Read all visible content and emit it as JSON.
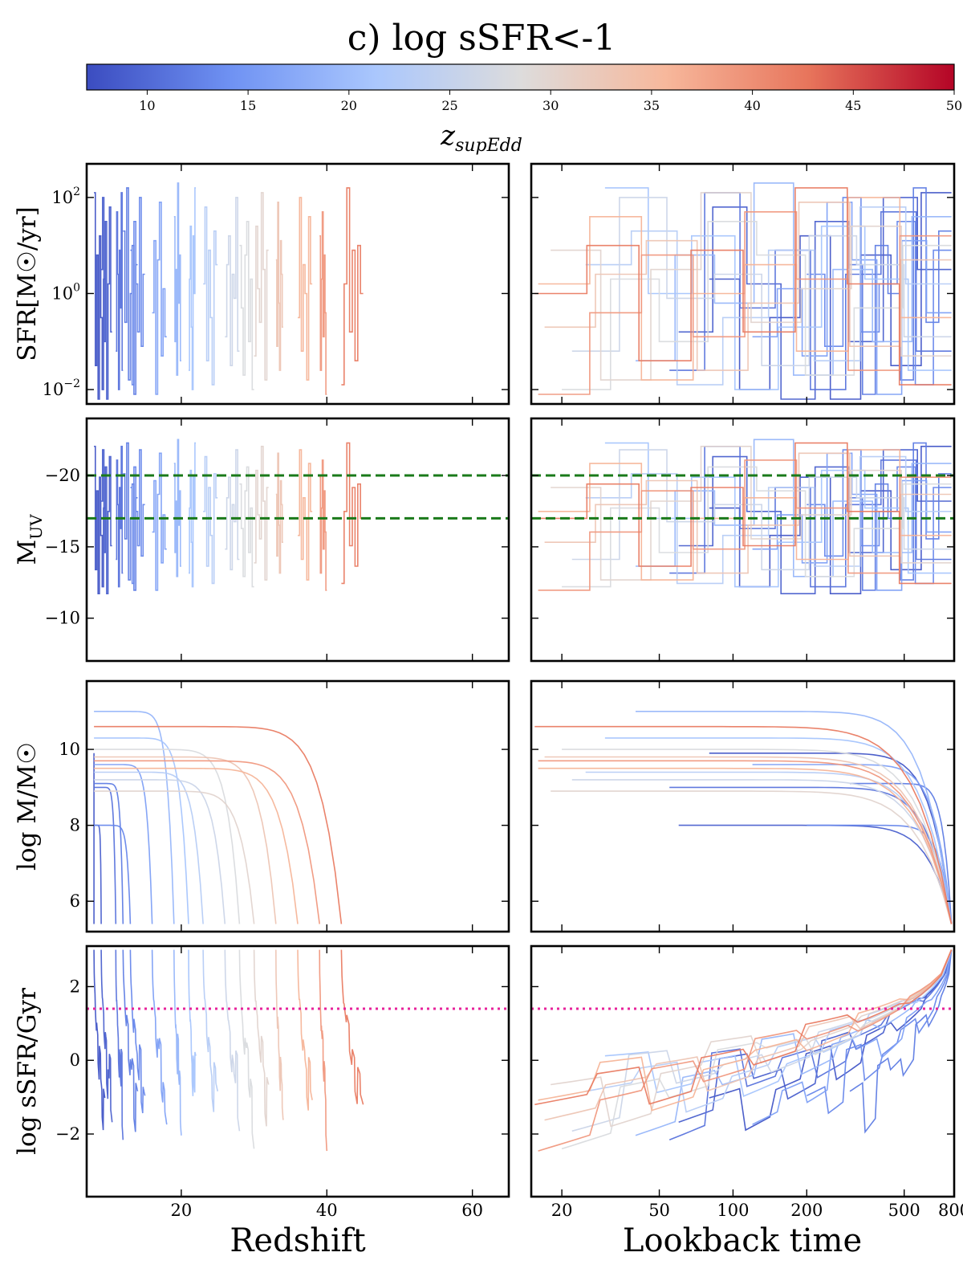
{
  "title": "c) log sSFR<-1",
  "colorbar": {
    "label_main": "z",
    "label_sub": "supEdd",
    "min": 7,
    "max": 50,
    "ticks": [
      10,
      15,
      20,
      25,
      30,
      35,
      40,
      45,
      50
    ],
    "colormap": [
      "#3b4cc0",
      "#6f92f3",
      "#aac7fd",
      "#dddcdc",
      "#f7b89c",
      "#e7745b",
      "#b40426"
    ]
  },
  "chart_data": {
    "type": "line",
    "x_left": {
      "label": "Redshift",
      "range": [
        7,
        65
      ],
      "ticks": [
        20,
        40,
        60
      ]
    },
    "x_right": {
      "label": "Lookback time",
      "scale": "log",
      "range": [
        15,
        800
      ],
      "ticks": [
        20,
        50,
        100,
        200,
        500,
        800
      ]
    },
    "rows": [
      {
        "id": "sfr",
        "ylabel": "SFR[M☉/yr]",
        "scale": "log",
        "range": [
          -2.3,
          2.7
        ],
        "ticks": [
          {
            "v": 2,
            "base": "10",
            "exp": "2"
          },
          {
            "v": 0,
            "base": "10",
            "exp": "0"
          },
          {
            "v": -2,
            "base": "10",
            "exp": "−2"
          }
        ]
      },
      {
        "id": "muv",
        "ylabel": "M",
        "ylabel_sub": "UV",
        "scale": "linear",
        "range": [
          -24,
          -7
        ],
        "inverted": true,
        "ticks": [
          {
            "v": -10,
            "label": "−10"
          },
          {
            "v": -15,
            "label": "−15"
          },
          {
            "v": -20,
            "label": "−20"
          }
        ],
        "reference_lines": [
          {
            "y": -17,
            "color": "#1a7a1a",
            "style": "dashed"
          },
          {
            "y": -20,
            "color": "#1a7a1a",
            "style": "dashed"
          }
        ]
      },
      {
        "id": "mass",
        "ylabel": "log M/M☉",
        "scale": "linear",
        "range": [
          5.2,
          11.8
        ],
        "ticks": [
          {
            "v": 6,
            "label": "6"
          },
          {
            "v": 8,
            "label": "8"
          },
          {
            "v": 10,
            "label": "10"
          }
        ]
      },
      {
        "id": "ssfr",
        "ylabel": "log sSFR/Gyr",
        "scale": "linear",
        "range": [
          -3.7,
          3.1
        ],
        "ticks": [
          {
            "v": 2,
            "label": "2"
          },
          {
            "v": 0,
            "label": "0"
          },
          {
            "v": -2,
            "label": "−2"
          }
        ],
        "reference_lines": [
          {
            "y": 1.4,
            "color": "#e7239b",
            "style": "dotted"
          }
        ]
      }
    ],
    "series": [
      {
        "z_supEdd": 8,
        "z_final": 9.5,
        "t_first": 80,
        "mass0": 9.9,
        "sfr": [
          2.1,
          -1.5,
          0.8,
          -2.2,
          1.2,
          -0.5,
          -2.0,
          0.3
        ]
      },
      {
        "z_supEdd": 9,
        "z_final": 10.5,
        "t_first": 60,
        "mass0": 8.0,
        "sfr": [
          0.5,
          2.0,
          -1.0,
          1.5,
          -2.2,
          0.2,
          1.8,
          -0.8
        ]
      },
      {
        "z_supEdd": 11,
        "z_final": 12,
        "t_first": 55,
        "mass0": 9.0,
        "sfr": [
          -1.2,
          1.7,
          0.4,
          -2.0,
          0.9,
          -0.3,
          2.1,
          -1.6
        ]
      },
      {
        "z_supEdd": 12,
        "z_final": 14,
        "t_first": 300,
        "mass0": 9.1,
        "sfr": [
          1.3,
          -0.6,
          2.2,
          -1.8,
          0.0,
          1.0,
          -2.1,
          0.6
        ]
      },
      {
        "z_supEdd": 13,
        "z_final": 15,
        "t_first": 200,
        "mass0": 8.0,
        "sfr": [
          0.9,
          -1.9,
          1.5,
          0.2,
          -0.8,
          2.0,
          -1.1,
          0.4
        ]
      },
      {
        "z_supEdd": 16,
        "z_final": 18,
        "t_first": 120,
        "mass0": 9.6,
        "sfr": [
          -0.4,
          1.1,
          -2.1,
          0.7,
          1.9,
          -1.3,
          0.1,
          -0.9
        ]
      },
      {
        "z_supEdd": 19,
        "z_final": 20,
        "t_first": 40,
        "mass0": 11.0,
        "sfr": [
          1.6,
          -1.0,
          0.5,
          -1.7,
          2.3,
          -0.2,
          0.8,
          -1.4
        ]
      },
      {
        "z_supEdd": 21,
        "z_final": 22,
        "t_first": 30,
        "mass0": 10.3,
        "sfr": [
          -1.6,
          0.3,
          1.4,
          -0.7,
          -2.0,
          1.2,
          0.0,
          2.2
        ]
      },
      {
        "z_supEdd": 23,
        "z_final": 25,
        "t_first": 25,
        "mass0": 9.4,
        "sfr": [
          0.2,
          1.8,
          -1.4,
          0.9,
          -0.5,
          -1.9,
          1.3,
          0.6
        ]
      },
      {
        "z_supEdd": 26,
        "z_final": 28,
        "t_first": 22,
        "mass0": 9.2,
        "sfr": [
          -0.9,
          0.6,
          1.2,
          -1.5,
          0.4,
          -0.1,
          2.0,
          -1.2
        ]
      },
      {
        "z_supEdd": 28,
        "z_final": 30,
        "t_first": 20,
        "mass0": 10.0,
        "sfr": [
          1.0,
          -0.3,
          -1.7,
          0.8,
          1.5,
          -1.0,
          0.3,
          -2.0
        ]
      },
      {
        "z_supEdd": 30,
        "z_final": 32,
        "t_first": 18,
        "mass0": 8.9,
        "sfr": [
          -1.3,
          1.4,
          0.1,
          -0.6,
          2.1,
          0.5,
          -1.8,
          0.9
        ]
      },
      {
        "z_supEdd": 33,
        "z_final": 34,
        "t_first": 17,
        "mass0": 9.8,
        "sfr": [
          0.7,
          -1.1,
          1.9,
          -0.2,
          -1.6,
          1.1,
          0.4,
          -0.7
        ]
      },
      {
        "z_supEdd": 36,
        "z_final": 38,
        "t_first": 16,
        "mass0": 9.5,
        "sfr": [
          -0.5,
          2.0,
          -1.2,
          0.6,
          0.0,
          -1.8,
          1.6,
          0.2
        ]
      },
      {
        "z_supEdd": 39,
        "z_final": 40,
        "t_first": 16,
        "mass0": 9.7,
        "sfr": [
          1.2,
          -1.6,
          0.3,
          1.7,
          -0.9,
          0.8,
          -0.4,
          -2.1
        ]
      },
      {
        "z_supEdd": 42,
        "z_final": 45,
        "t_first": 15,
        "mass0": 10.6,
        "sfr": [
          -1.9,
          0.2,
          2.2,
          -0.8,
          0.9,
          -1.4,
          1.0,
          0.0
        ]
      }
    ]
  }
}
